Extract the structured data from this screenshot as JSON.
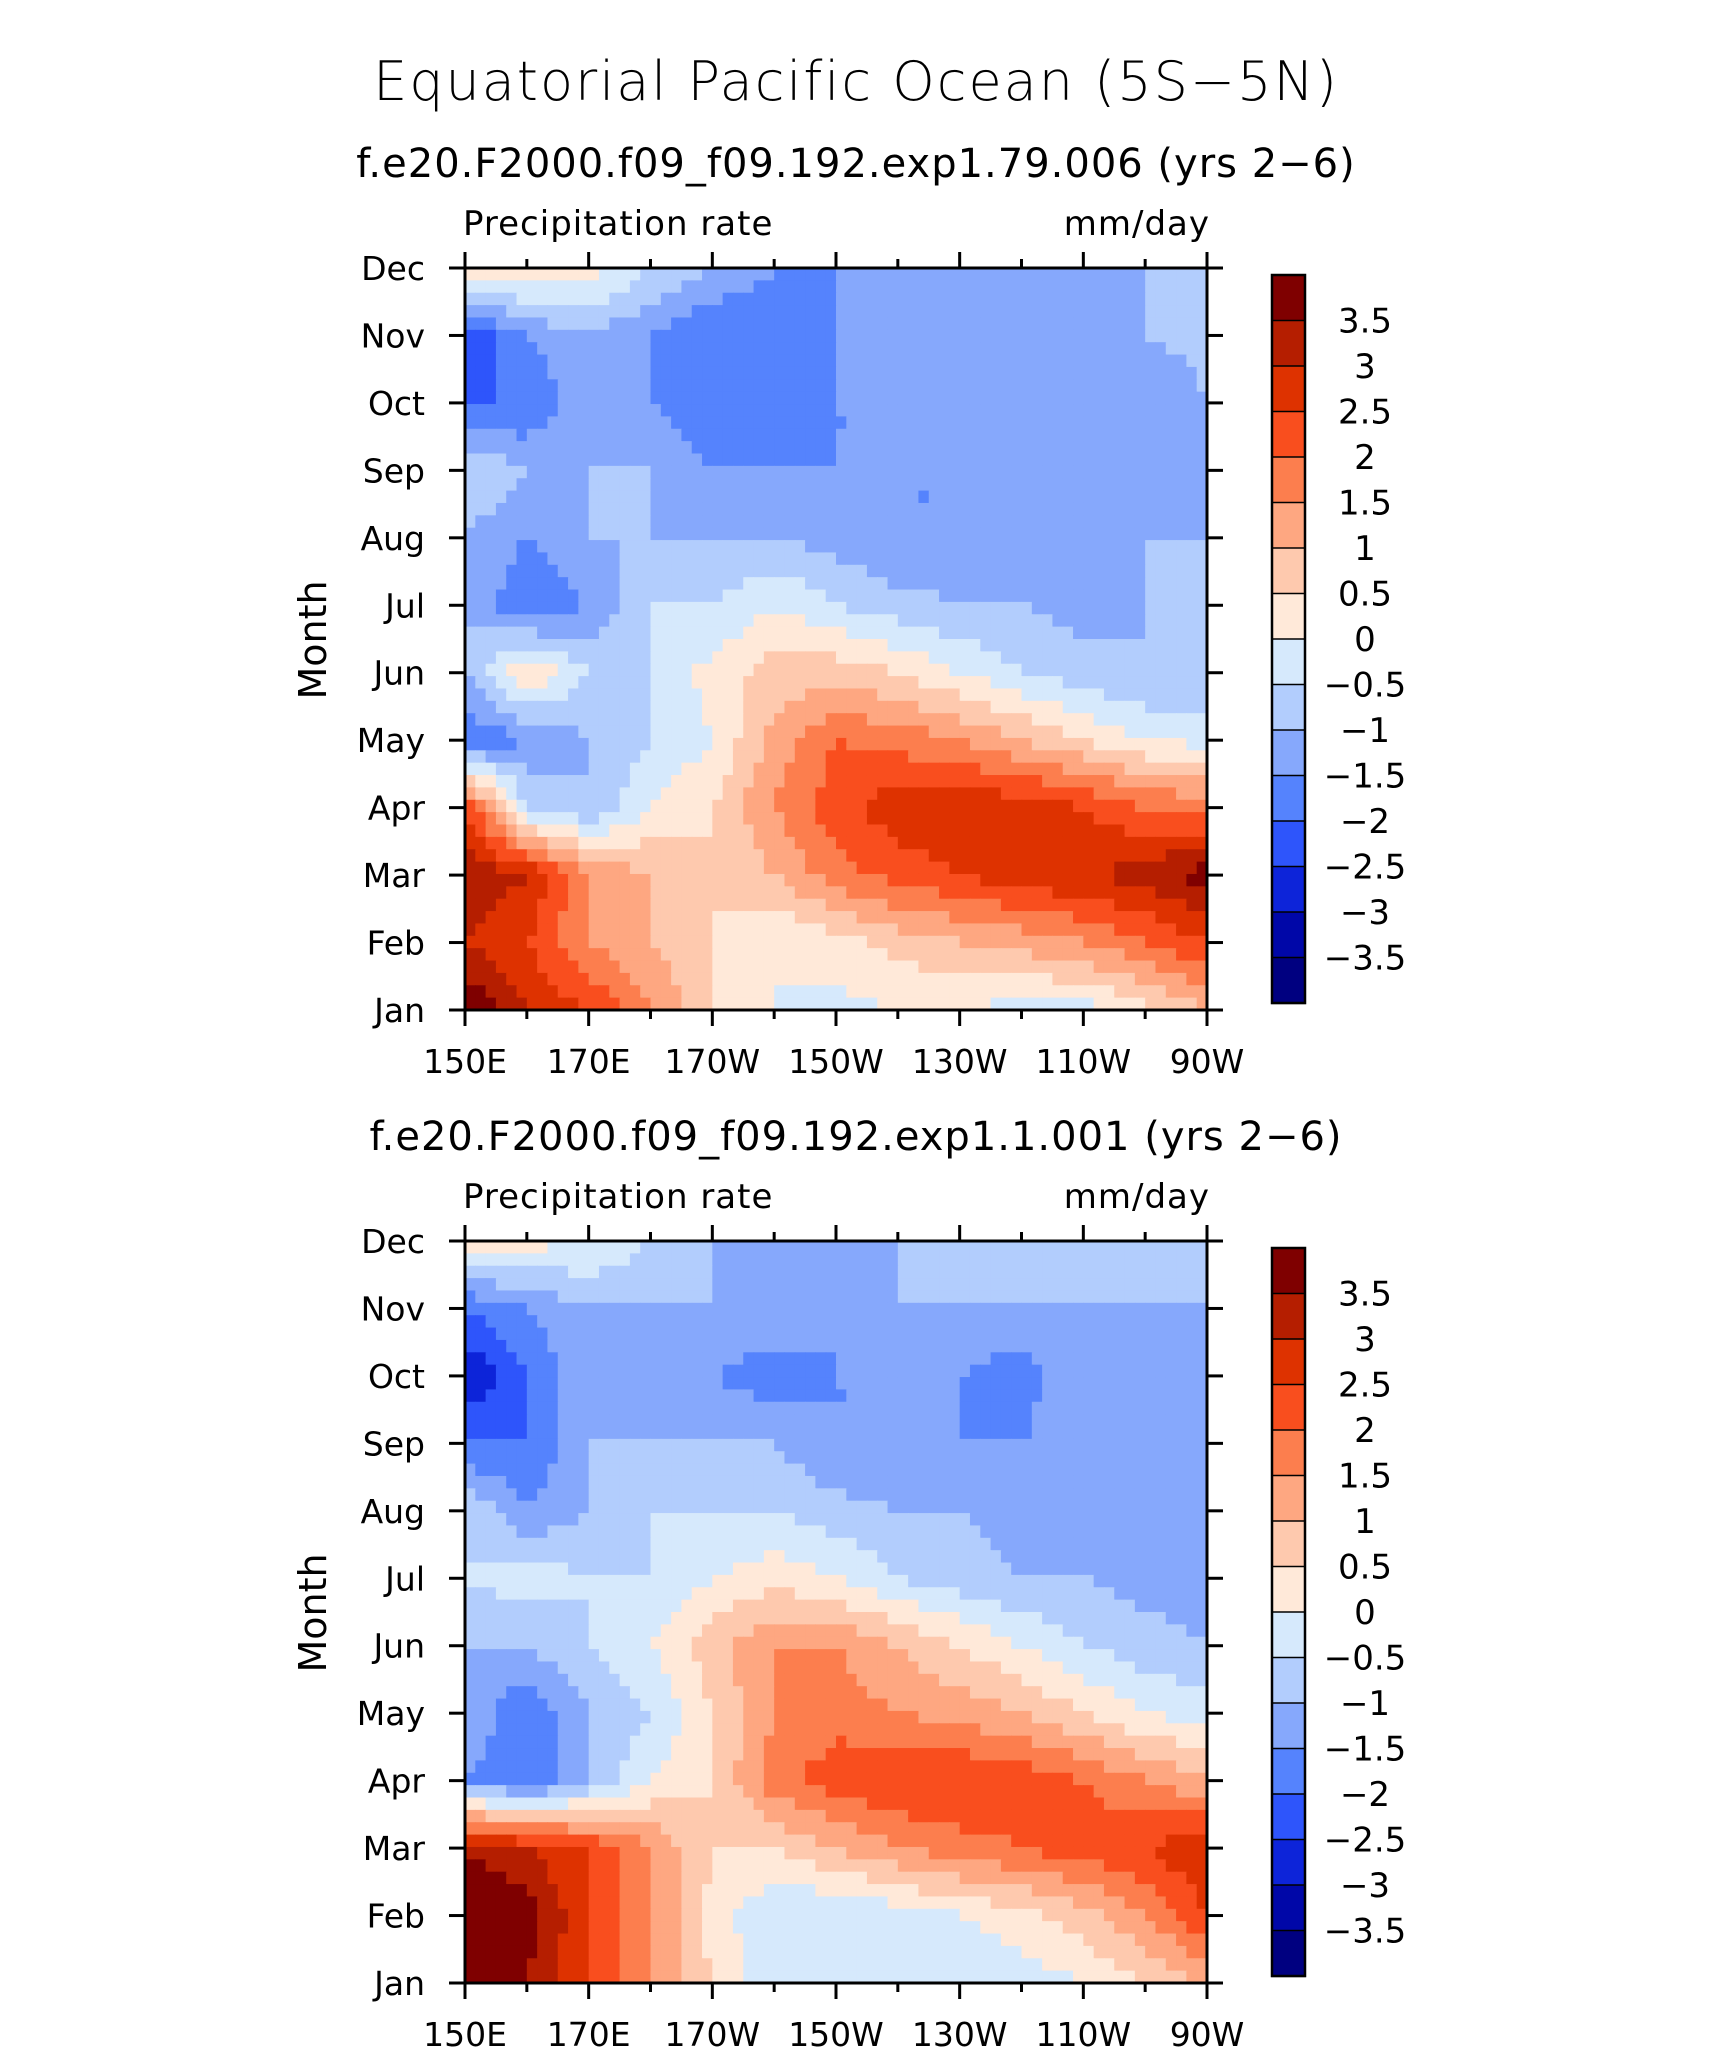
{
  "title": "Equatorial Pacific Ocean (5S−5N)",
  "colorbar": {
    "levels": [
      "3.5",
      "3",
      "2.5",
      "2",
      "1.5",
      "1",
      "0.5",
      "0",
      "−0.5",
      "−1",
      "−1.5",
      "−2",
      "−2.5",
      "−3",
      "−3.5"
    ],
    "colors": [
      "#7f0000",
      "#b51e00",
      "#de3200",
      "#f94e1e",
      "#fc7e4e",
      "#fea781",
      "#fec9ae",
      "#ffe9d9",
      "#d6e9fc",
      "#b2cdfd",
      "#86a8fc",
      "#5583fd",
      "#2e55fb",
      "#0d24d9",
      "#0007a8",
      "#000080"
    ]
  },
  "chart_data": [
    {
      "type": "heatmap",
      "subtitle": "f.e20.F2000.f09_f09.192.exp1.79.006 (yrs 2−6)",
      "left_label": "Precipitation rate",
      "right_label": "mm/day",
      "ylabel": "Month",
      "x_tick_labels": [
        "150E",
        "170E",
        "170W",
        "150W",
        "130W",
        "110W",
        "90W"
      ],
      "y_tick_labels": [
        "Jan",
        "Feb",
        "Mar",
        "Apr",
        "May",
        "Jun",
        "Jul",
        "Aug",
        "Sep",
        "Oct",
        "Nov",
        "Dec"
      ],
      "x_range": [
        150,
        270
      ],
      "y_range": [
        1,
        12
      ],
      "contour_levels": [
        -3.5,
        -3,
        -2.5,
        -2,
        -1.5,
        -1,
        -0.5,
        0,
        0.5,
        1,
        1.5,
        2,
        2.5,
        3,
        3.5
      ],
      "x": [
        150,
        160,
        170,
        180,
        190,
        200,
        210,
        220,
        230,
        240,
        250,
        260,
        270
      ],
      "values": [
        [
          4.0,
          3.0,
          2.5,
          1.5,
          0.5,
          0.0,
          -0.2,
          0.0,
          0.0,
          -0.2,
          -0.2,
          0.3,
          1.0
        ],
        [
          3.0,
          2.5,
          1.5,
          1.0,
          0.5,
          0.0,
          0.3,
          0.7,
          1.0,
          1.2,
          1.5,
          2.0,
          2.5
        ],
        [
          3.5,
          3.0,
          1.5,
          1.0,
          0.5,
          1.0,
          1.8,
          2.2,
          2.5,
          2.8,
          3.0,
          3.2,
          3.8
        ],
        [
          2.5,
          -0.5,
          -1.0,
          0.0,
          0.5,
          1.5,
          2.3,
          2.8,
          3.0,
          2.8,
          2.5,
          2.0,
          1.8
        ],
        [
          -2.0,
          -1.5,
          -1.0,
          -0.5,
          0.0,
          1.2,
          2.0,
          1.8,
          1.5,
          1.0,
          0.5,
          0.0,
          -0.2
        ],
        [
          -1.0,
          0.5,
          -0.5,
          -0.5,
          0.2,
          0.7,
          0.8,
          0.5,
          0.0,
          -0.5,
          -0.8,
          -1.0,
          -1.0
        ],
        [
          -1.0,
          -2.0,
          -1.5,
          -0.5,
          -0.5,
          0.0,
          -0.5,
          -0.8,
          -1.0,
          -1.0,
          -1.2,
          -1.0,
          -1.0
        ],
        [
          -1.0,
          -1.5,
          -1.0,
          -1.0,
          -1.0,
          -1.0,
          -1.2,
          -1.5,
          -1.5,
          -1.5,
          -1.2,
          -1.0,
          -1.0
        ],
        [
          -0.5,
          -1.0,
          -1.0,
          -1.0,
          -1.5,
          -1.5,
          -1.5,
          -1.5,
          -1.5,
          -1.5,
          -1.5,
          -1.2,
          -1.0
        ],
        [
          -2.0,
          -2.0,
          -1.0,
          -1.5,
          -2.0,
          -2.0,
          -1.5,
          -1.5,
          -1.5,
          -1.5,
          -1.5,
          -1.5,
          -1.0
        ],
        [
          -2.5,
          -1.5,
          -1.0,
          -1.5,
          -2.0,
          -1.8,
          -1.5,
          -1.5,
          -1.5,
          -1.5,
          -1.2,
          -1.0,
          -0.8
        ],
        [
          0.5,
          0.5,
          0.3,
          -0.5,
          -1.0,
          -1.5,
          -1.5,
          -1.5,
          -1.5,
          -1.0,
          -1.0,
          -1.0,
          -0.8
        ]
      ]
    },
    {
      "type": "heatmap",
      "subtitle": "f.e20.F2000.f09_f09.192.exp1.1.001 (yrs 2−6)",
      "left_label": "Precipitation rate",
      "right_label": "mm/day",
      "ylabel": "Month",
      "x_tick_labels": [
        "150E",
        "170E",
        "170W",
        "150W",
        "130W",
        "110W",
        "90W"
      ],
      "y_tick_labels": [
        "Jan",
        "Feb",
        "Mar",
        "Apr",
        "May",
        "Jun",
        "Jul",
        "Aug",
        "Sep",
        "Oct",
        "Nov",
        "Dec"
      ],
      "x_range": [
        150,
        270
      ],
      "y_range": [
        1,
        12
      ],
      "contour_levels": [
        -3.5,
        -3,
        -2.5,
        -2,
        -1.5,
        -1,
        -0.5,
        0,
        0.5,
        1,
        1.5,
        2,
        2.5,
        3,
        3.5
      ],
      "x": [
        150,
        160,
        170,
        180,
        190,
        200,
        210,
        220,
        230,
        240,
        250,
        260,
        270
      ],
      "values": [
        [
          4.0,
          3.5,
          2.5,
          1.5,
          0.5,
          -0.5,
          -0.5,
          -0.5,
          -0.5,
          -0.3,
          0.0,
          0.5,
          1.0
        ],
        [
          4.0,
          3.8,
          2.5,
          1.5,
          0.3,
          -0.5,
          -0.5,
          -0.3,
          0.0,
          0.3,
          0.8,
          1.5,
          2.5
        ],
        [
          3.5,
          3.0,
          2.5,
          1.5,
          0.5,
          0.5,
          1.0,
          1.5,
          1.8,
          2.0,
          2.3,
          2.5,
          3.0
        ],
        [
          -1.5,
          -2.0,
          -1.0,
          0.0,
          0.5,
          1.8,
          2.3,
          2.5,
          2.5,
          2.3,
          2.0,
          1.5,
          1.0
        ],
        [
          -1.0,
          -2.0,
          -1.0,
          -0.5,
          0.5,
          1.5,
          1.8,
          1.5,
          1.3,
          1.0,
          0.5,
          0.0,
          -0.2
        ],
        [
          -1.0,
          -1.0,
          -0.5,
          0.0,
          0.8,
          1.5,
          1.5,
          1.0,
          0.5,
          0.0,
          -0.5,
          -0.8,
          -1.0
        ],
        [
          -0.5,
          -0.2,
          -0.5,
          -0.5,
          0.0,
          0.3,
          0.0,
          -0.5,
          -0.8,
          -1.0,
          -1.0,
          -1.2,
          -1.2
        ],
        [
          -0.5,
          -1.5,
          -1.0,
          -0.5,
          -0.5,
          -0.5,
          -0.8,
          -1.0,
          -1.0,
          -1.2,
          -1.5,
          -1.5,
          -1.5
        ],
        [
          -2.0,
          -2.0,
          -1.0,
          -1.0,
          -1.0,
          -1.0,
          -1.5,
          -1.5,
          -1.5,
          -1.5,
          -1.0,
          -1.5,
          -1.5
        ],
        [
          -3.0,
          -2.0,
          -1.0,
          -1.5,
          -1.5,
          -1.8,
          -1.5,
          -1.5,
          -1.5,
          -1.8,
          -1.0,
          -1.5,
          -1.5
        ],
        [
          -2.0,
          -1.5,
          -1.0,
          -1.0,
          -1.0,
          -1.0,
          -1.5,
          -1.0,
          -1.0,
          -1.0,
          -1.0,
          -1.0,
          -1.0
        ],
        [
          0.5,
          0.2,
          0.0,
          -0.5,
          -1.0,
          -1.5,
          -1.5,
          -1.0,
          -1.0,
          -1.0,
          -0.8,
          -0.5,
          -0.5
        ]
      ]
    }
  ]
}
